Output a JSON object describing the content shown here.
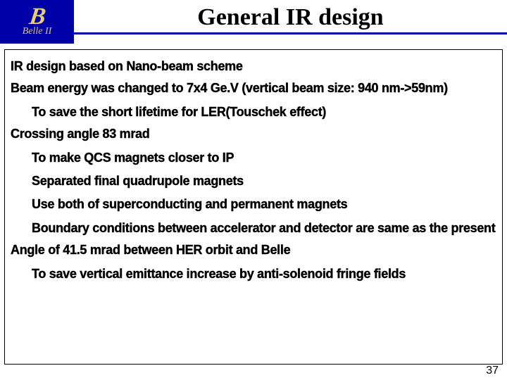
{
  "logo": {
    "main": "B",
    "sub": "Belle II"
  },
  "title": "General IR design",
  "lines": {
    "l1": "IR design based on Nano-beam scheme",
    "l2": "Beam energy was changed to 7x4 Ge.V (vertical beam size: 940 nm->59nm)",
    "l3": "To save the short lifetime for LER(Touschek  effect)",
    "l4": "Crossing angle 83 mrad",
    "l5": "To make QCS magnets closer to IP",
    "l6": "Separated final quadrupole magnets",
    "l7": "Use both of superconducting and permanent magnets",
    "l8": "Boundary conditions between accelerator and detector are same as the present",
    "l9": "Angle of 41.5 mrad between HER orbit and Belle",
    "l10": "To save vertical emittance increase by anti-solenoid fringe fields"
  },
  "page": "37",
  "colors": {
    "logo_bg": "#0000a8",
    "logo_fg": "#e8d070",
    "rule": "#0000a8"
  }
}
